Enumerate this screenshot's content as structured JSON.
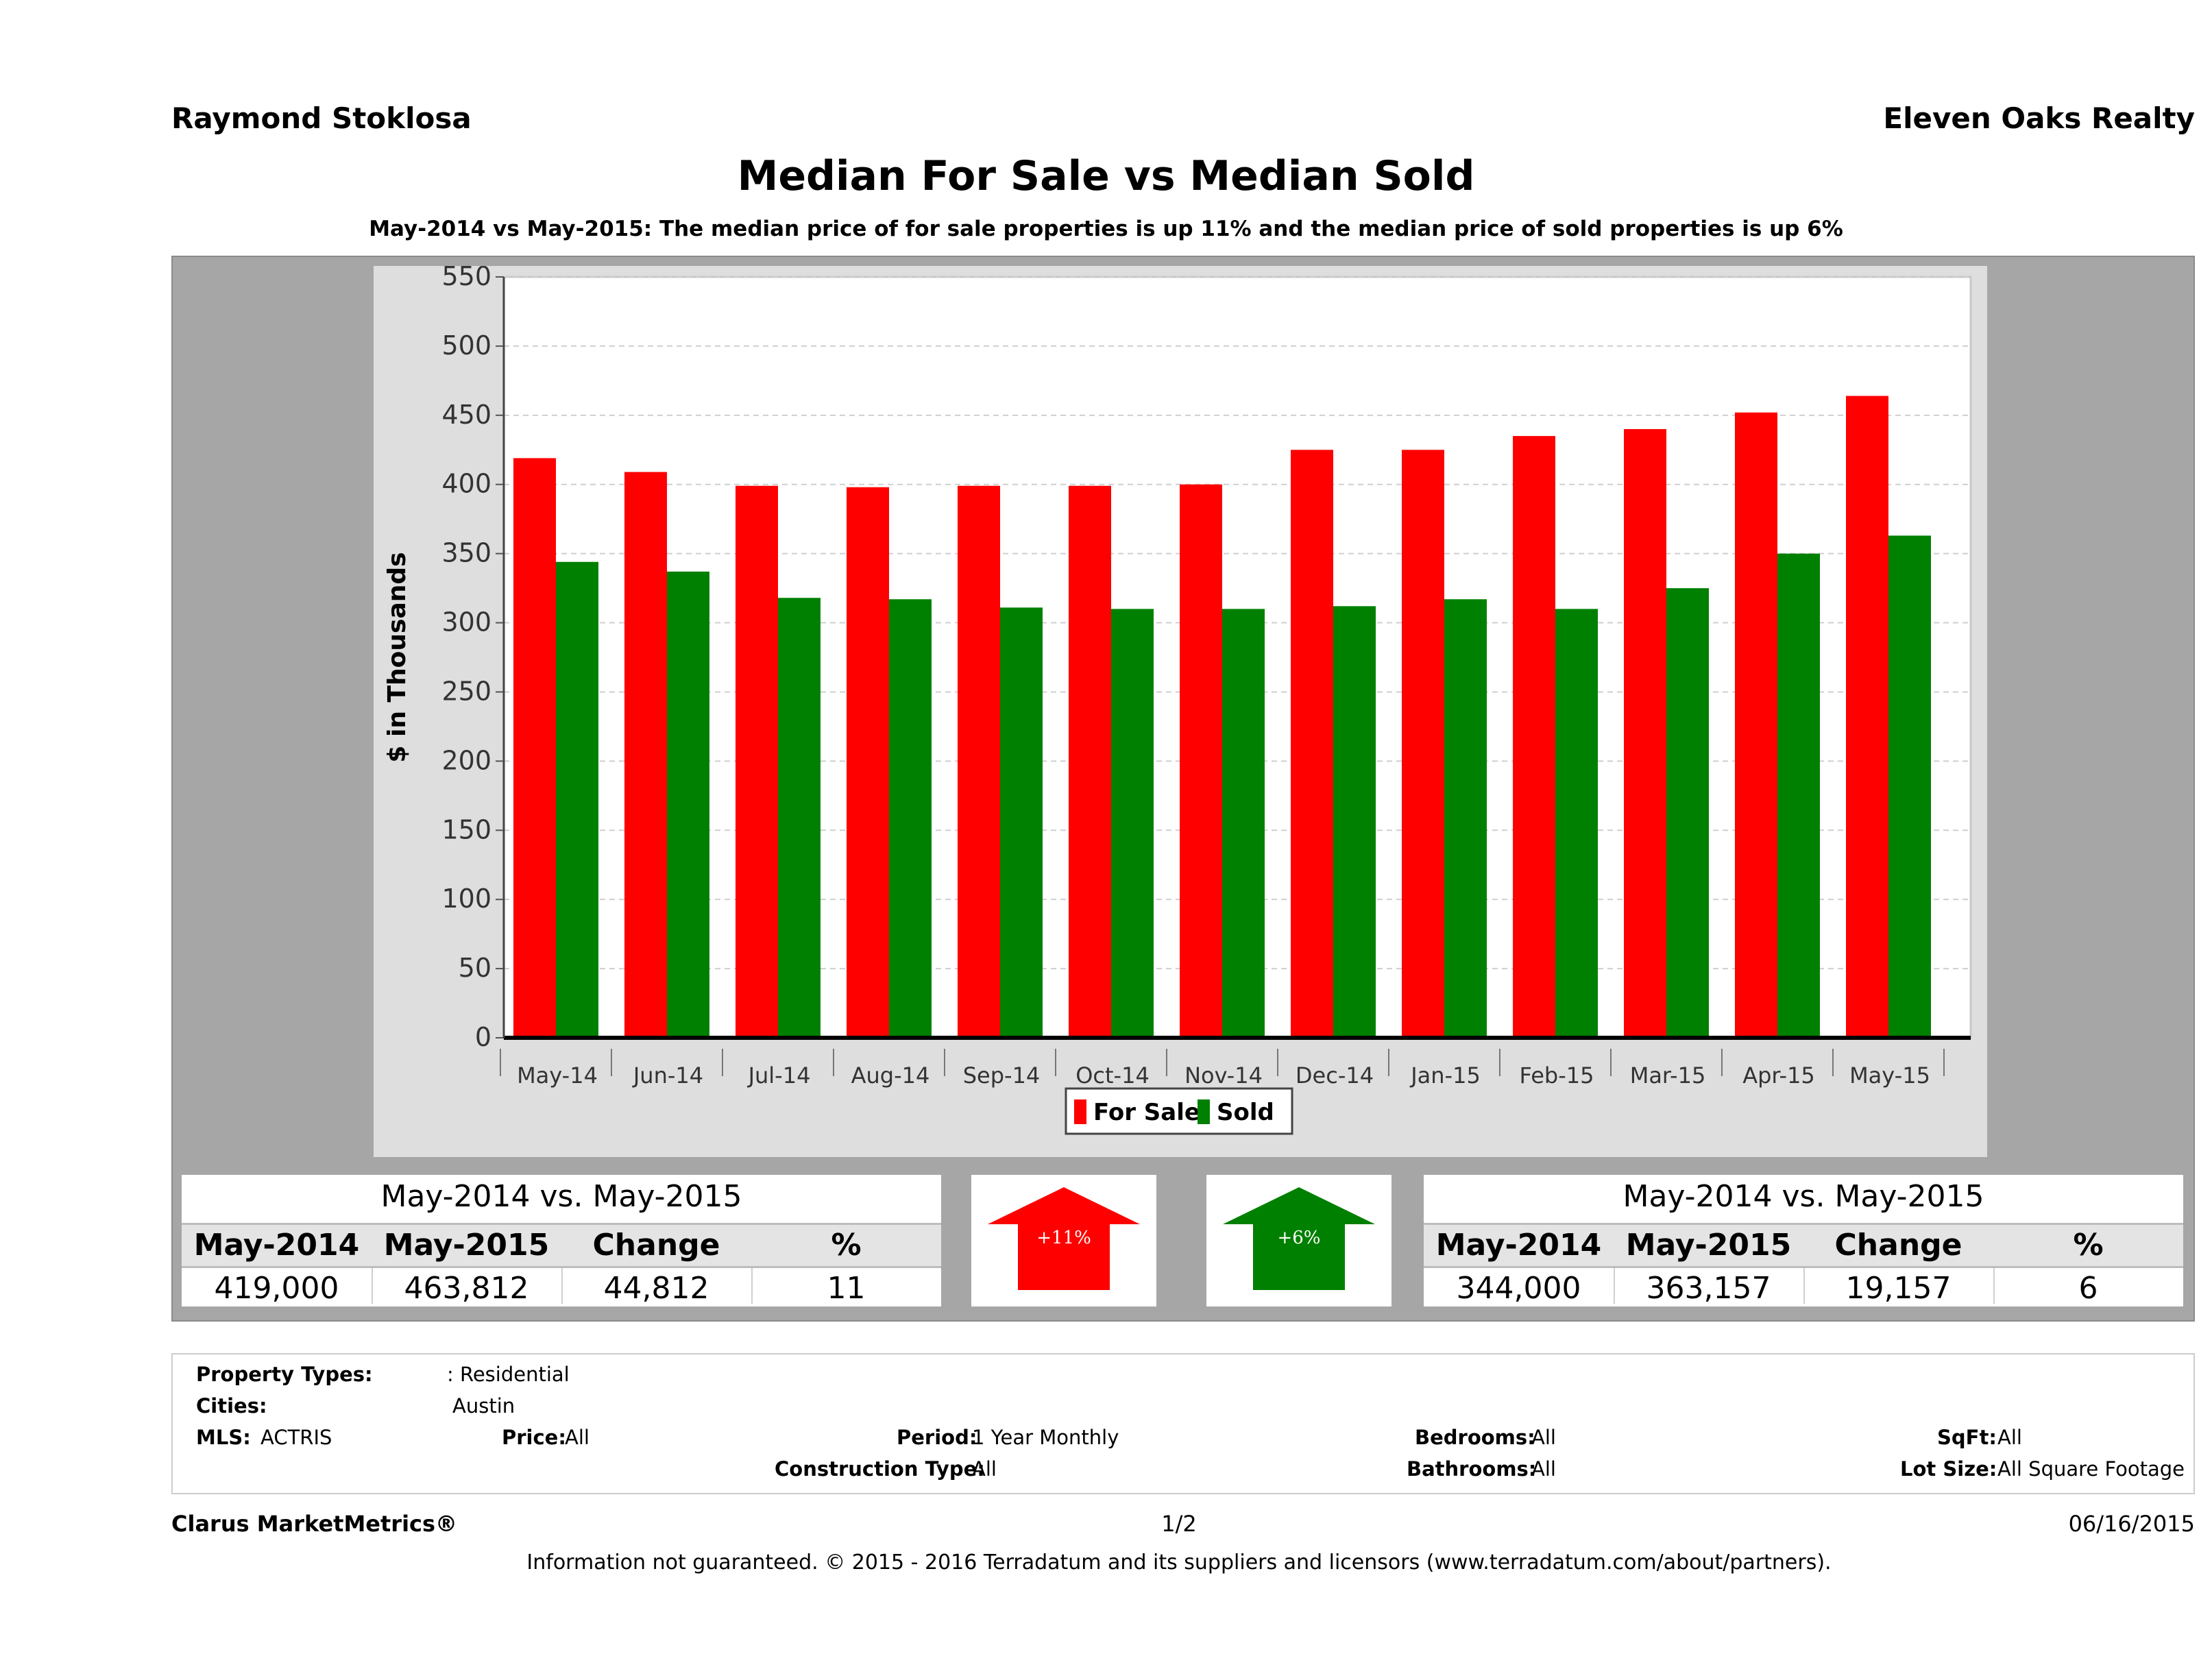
{
  "header": {
    "agent_name": "Raymond Stoklosa",
    "brokerage": "Eleven Oaks Realty"
  },
  "chart_data": {
    "type": "bar",
    "title": "Median For Sale vs Median Sold",
    "subtitle": "May-2014 vs May-2015: The median price of for sale properties is up 11% and the median price of sold properties is up 6%",
    "ylabel": "$ in Thousands",
    "xlabel": "",
    "ylim": [
      0,
      550
    ],
    "yticks": [
      "550",
      "500",
      "450",
      "400",
      "350",
      "300",
      "250",
      "200",
      "150",
      "100",
      "50",
      "0"
    ],
    "grid": true,
    "legend_position": "bottom-center",
    "categories": [
      "May-14",
      "Jun-14",
      "Jul-14",
      "Aug-14",
      "Sep-14",
      "Oct-14",
      "Nov-14",
      "Dec-14",
      "Jan-15",
      "Feb-15",
      "Mar-15",
      "Apr-15",
      "May-15"
    ],
    "series": [
      {
        "name": "For Sale",
        "color": "#ff0000",
        "values": [
          419,
          409,
          399,
          398,
          399,
          399,
          400,
          425,
          425,
          435,
          440,
          452,
          464
        ]
      },
      {
        "name": "Sold",
        "color": "#008000",
        "values": [
          344,
          337,
          318,
          317,
          311,
          310,
          310,
          312,
          317,
          310,
          325,
          350,
          363
        ]
      }
    ]
  },
  "for_sale_summary": {
    "title": "May-2014 vs. May-2015",
    "headers": [
      "May-2014",
      "May-2015",
      "Change",
      "%"
    ],
    "values": [
      "419,000",
      "463,812",
      "44,812",
      "11"
    ],
    "arrow_label": "+11%",
    "arrow_color": "#ff0000"
  },
  "sold_summary": {
    "title": "May-2014 vs. May-2015",
    "headers": [
      "May-2014",
      "May-2015",
      "Change",
      "%"
    ],
    "values": [
      "344,000",
      "363,157",
      "19,157",
      "6"
    ],
    "arrow_label": "+6%",
    "arrow_color": "#008000"
  },
  "filters": {
    "property_types_label": "Property Types:",
    "property_types_value": ": Residential",
    "cities_label": "Cities:",
    "cities_value": "Austin",
    "mls_label": "MLS:",
    "mls_value": "ACTRIS",
    "price_label": "Price:",
    "price_value": "All",
    "period_label": "Period:",
    "period_value": "1 Year Monthly",
    "construction_label": "Construction Type:",
    "construction_value": "All",
    "bedrooms_label": "Bedrooms:",
    "bedrooms_value": "All",
    "bathrooms_label": "Bathrooms:",
    "bathrooms_value": "All",
    "sqft_label": "SqFt:",
    "sqft_value": "All",
    "lot_label": "Lot Size:",
    "lot_value": "All Square Footage"
  },
  "footer": {
    "brand": "Clarus MarketMetrics®",
    "page": "1/2",
    "date": "06/16/2015",
    "disclaimer": "Information not guaranteed. © 2015 - 2016 Terradatum and its suppliers and licensors (www.terradatum.com/about/partners)."
  }
}
